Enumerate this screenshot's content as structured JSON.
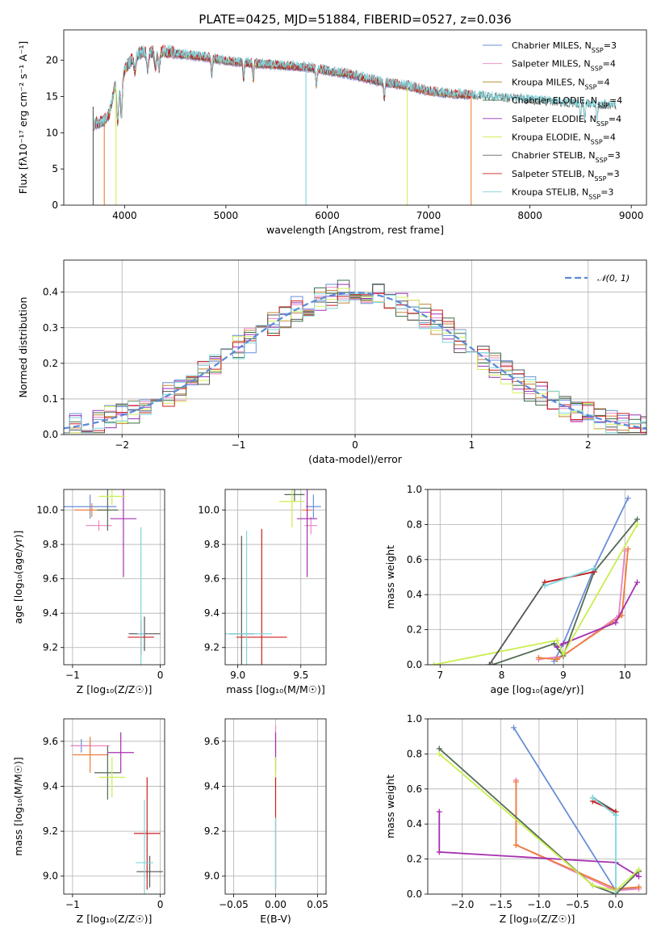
{
  "figure": {
    "title": "PLATE=0425, MJD=51884, FIBERID=0527, z=0.036"
  },
  "colors": {
    "Chabrier MILES": "#6a8fd8",
    "Salpeter MILES": "#e986c1",
    "Kroupa MILES": "#b88a1e",
    "Chabrier ELODIE": "#3b6e45",
    "Salpeter ELODIE": "#9b30b5",
    "Kroupa ELODIE": "#d4ef5c",
    "Chabrier STELIB": "#666666",
    "Salpeter STELIB": "#cc1f1f",
    "Kroupa STELIB": "#7fd6dd",
    "fit1": "#6a8fd8",
    "fit2": "#ef7d3a",
    "fit3": "#556b55",
    "fit4": "#a52fb0",
    "fit5": "#c9ee4e",
    "fit6": "#7fd6dd"
  },
  "chart_data": [
    {
      "id": "spectrum",
      "type": "line",
      "title": "PLATE=0425, MJD=51884, FIBERID=0527, z=0.036",
      "xlabel": "wavelength [Angstrom, rest frame]",
      "ylabel": "Flux [fλ10⁻¹⁷ erg cm⁻² s⁻¹ A⁻¹]",
      "xlim": [
        3400,
        9150
      ],
      "ylim": [
        0,
        24.2
      ],
      "xticks": [
        4000,
        5000,
        6000,
        7000,
        8000,
        9000
      ],
      "yticks": [
        0,
        5,
        10,
        15,
        20
      ],
      "grid": false,
      "legend_position": "upper-right",
      "series": [
        {
          "name": "Chabrier MILES, N",
          "sub": "SSP",
          "suffix": "=3",
          "color": "#6a8fd8",
          "xrange": [
            3700,
            7400
          ]
        },
        {
          "name": "Salpeter MILES, N",
          "sub": "SSP",
          "suffix": "=4",
          "color": "#e986c1",
          "xrange": [
            3700,
            7400
          ]
        },
        {
          "name": "Kroupa MILES, N",
          "sub": "SSP",
          "suffix": "=4",
          "color": "#b88a1e",
          "xrange": [
            3700,
            7400
          ]
        },
        {
          "name": "Chabrier ELODIE, N",
          "sub": "SSP",
          "suffix": "=4",
          "color": "#3b6e45",
          "xrange": [
            3700,
            6800
          ]
        },
        {
          "name": "Salpeter ELODIE, N",
          "sub": "SSP",
          "suffix": "=4",
          "color": "#9b30b5",
          "xrange": [
            3700,
            6800
          ]
        },
        {
          "name": "Kroupa ELODIE, N",
          "sub": "SSP",
          "suffix": "=4",
          "color": "#d4ef5c",
          "xrange": [
            3700,
            6800
          ]
        },
        {
          "name": "Chabrier STELIB, N",
          "sub": "SSP",
          "suffix": "=3",
          "color": "#666666",
          "xrange": [
            3700,
            8850
          ]
        },
        {
          "name": "Salpeter STELIB, N",
          "sub": "SSP",
          "suffix": "=3",
          "color": "#cc1f1f",
          "xrange": [
            3700,
            7420
          ]
        },
        {
          "name": "Kroupa STELIB, N",
          "sub": "SSP",
          "suffix": "=3",
          "color": "#7fd6dd",
          "xrange": [
            3700,
            8850
          ]
        }
      ],
      "continuum": {
        "x": [
          3700,
          3800,
          3850,
          3900,
          4000,
          4100,
          4200,
          4400,
          4600,
          4800,
          5000,
          5200,
          5500,
          5800,
          6000,
          6200,
          6500,
          6800,
          7000,
          7200,
          7500,
          7800,
          8000,
          8300,
          8600,
          8850
        ],
        "y": [
          11.0,
          11.5,
          12.5,
          16.0,
          18.5,
          20.5,
          21.0,
          21.0,
          20.6,
          20.3,
          19.8,
          19.5,
          19.2,
          18.9,
          18.4,
          18.0,
          17.0,
          16.3,
          15.6,
          15.3,
          15.0,
          14.6,
          14.4,
          14.0,
          13.8,
          13.6
        ]
      },
      "absorption_lines": [
        3934,
        3969,
        4102,
        4227,
        4304,
        4341,
        4861,
        5175,
        5270,
        5893,
        6563,
        8498,
        8542,
        8662
      ],
      "dropouts": [
        {
          "x": 3690,
          "color": "#555555"
        },
        {
          "x": 3800,
          "color": "#ef7d3a"
        },
        {
          "x": 3915,
          "color": "#d4ef5c"
        },
        {
          "x": 5790,
          "color": "#7fd6dd"
        },
        {
          "x": 6790,
          "color": "#d4ef5c"
        },
        {
          "x": 7420,
          "color": "#ef7d3a"
        }
      ]
    },
    {
      "id": "residuals",
      "type": "line",
      "xlabel": "(data-model)/error",
      "ylabel": "Normed distribution",
      "xlim": [
        -2.5,
        2.5
      ],
      "ylim": [
        0,
        0.49
      ],
      "xticks": [
        -2,
        -1,
        0,
        1,
        2
      ],
      "yticks": [
        0.0,
        0.1,
        0.2,
        0.3,
        0.4
      ],
      "grid": true,
      "legend_position": "upper-right",
      "reference": {
        "name": "𝒩(0, 1)",
        "mean": 0,
        "sigma": 1,
        "color": "#5a8ad8"
      },
      "bin_width": 0.1,
      "histograms": [
        {
          "color": "#6a8fd8",
          "offset": 0.0
        },
        {
          "color": "#e986c1",
          "offset": 0.03
        },
        {
          "color": "#c0853a",
          "offset": 0.06
        },
        {
          "color": "#3b6e45",
          "offset": 0.09
        },
        {
          "color": "#9b30b5",
          "offset": 0.12
        },
        {
          "color": "#d4ef5c",
          "offset": 0.15
        },
        {
          "color": "#555555",
          "offset": 0.18
        },
        {
          "color": "#cc1f1f",
          "offset": 0.21
        },
        {
          "color": "#7fd6dd",
          "offset": 0.24
        }
      ]
    },
    {
      "id": "age_vs_Z",
      "type": "scatter",
      "xlabel": "Z [log₁₀(Z/Z☉)]",
      "ylabel": "age  [log₁₀(age/yr)]",
      "xlim": [
        -1.1,
        0.05
      ],
      "ylim": [
        9.1,
        10.12
      ],
      "xticks": [
        -1,
        0
      ],
      "yticks": [
        9.2,
        9.4,
        9.6,
        9.8,
        10.0
      ],
      "grid": true,
      "points": [
        {
          "x": -0.8,
          "y": 10.02,
          "xerr": 0.3,
          "yerr": 0.07,
          "color": "#6a8fd8"
        },
        {
          "x": -0.7,
          "y": 9.91,
          "xerr": 0.15,
          "yerr": 0.03,
          "color": "#e986c1"
        },
        {
          "x": -0.78,
          "y": 10.0,
          "xerr": 0.2,
          "yerr": 0.04,
          "color": "#ef7d3a"
        },
        {
          "x": -0.6,
          "y": 10.0,
          "xerr": 0.12,
          "yerr": 0.12,
          "color": "#556b55"
        },
        {
          "x": -0.42,
          "y": 9.95,
          "xerr": 0.15,
          "yerr": 0.34,
          "color": "#a52fb0"
        },
        {
          "x": -0.55,
          "y": 10.08,
          "xerr": 0.15,
          "yerr": 0.05,
          "color": "#c9ee4e"
        },
        {
          "x": -0.18,
          "y": 9.28,
          "xerr": 0.18,
          "yerr": 0.1,
          "color": "#555555"
        },
        {
          "x": -0.22,
          "y": 9.26,
          "xerr": 0.15,
          "yerr": 0.1,
          "color": "#cc1f1f"
        },
        {
          "x": -0.22,
          "y": 9.28,
          "xerr": 0.04,
          "yerr": 0.62,
          "color": "#7fd6dd"
        }
      ]
    },
    {
      "id": "age_vs_mass",
      "type": "scatter",
      "xlabel": "mass [log₁₀(M/M☉)]",
      "ylabel": "",
      "xlim": [
        8.9,
        9.7
      ],
      "ylim": [
        9.1,
        10.12
      ],
      "xticks": [
        9.0,
        9.5
      ],
      "yticks": [
        9.2,
        9.4,
        9.6,
        9.8,
        10.0
      ],
      "grid": true,
      "points": [
        {
          "x": 9.6,
          "y": 10.02,
          "xerr": 0.06,
          "yerr": 0.07,
          "color": "#6a8fd8"
        },
        {
          "x": 9.58,
          "y": 9.91,
          "xerr": 0.05,
          "yerr": 0.05,
          "color": "#e986c1"
        },
        {
          "x": 9.55,
          "y": 10.0,
          "xerr": 0.04,
          "yerr": 0.04,
          "color": "#ef7d3a"
        },
        {
          "x": 9.45,
          "y": 10.09,
          "xerr": 0.08,
          "yerr": 0.04,
          "color": "#556b55"
        },
        {
          "x": 9.55,
          "y": 9.95,
          "xerr": 0.08,
          "yerr": 0.34,
          "color": "#a52fb0"
        },
        {
          "x": 9.43,
          "y": 10.05,
          "xerr": 0.1,
          "yerr": 0.15,
          "color": "#c9ee4e"
        },
        {
          "x": 9.03,
          "y": 9.28,
          "xerr": 0.1,
          "yerr": 0.57,
          "color": "#555555"
        },
        {
          "x": 9.19,
          "y": 9.26,
          "xerr": 0.2,
          "yerr": 0.63,
          "color": "#cc1f1f"
        },
        {
          "x": 9.07,
          "y": 9.28,
          "xerr": 0.2,
          "yerr": 0.6,
          "color": "#7fd6dd"
        }
      ]
    },
    {
      "id": "weight_vs_age",
      "type": "line",
      "xlabel": "age  [log₁₀(age/yr)]",
      "ylabel": "mass weight",
      "xlim": [
        6.8,
        10.35
      ],
      "ylim": [
        0,
        1.0
      ],
      "xticks": [
        7,
        8,
        9,
        10
      ],
      "yticks": [
        0.0,
        0.2,
        0.4,
        0.6,
        0.8,
        1.0
      ],
      "grid": true,
      "series": [
        {
          "color": "#6a8fd8",
          "x": [
            8.85,
            9.0,
            9.5,
            10.05
          ],
          "y": [
            0.02,
            0.12,
            0.55,
            0.95
          ]
        },
        {
          "color": "#e986c1",
          "x": [
            8.6,
            9.0,
            9.9,
            10.0
          ],
          "y": [
            0.03,
            0.05,
            0.28,
            0.65
          ]
        },
        {
          "color": "#ef7d3a",
          "x": [
            8.6,
            8.9,
            9.95,
            10.05
          ],
          "y": [
            0.04,
            0.03,
            0.28,
            0.66
          ]
        },
        {
          "color": "#556b55",
          "x": [
            7.85,
            8.85,
            9.0,
            9.5,
            10.2
          ],
          "y": [
            0.0,
            0.12,
            0.05,
            0.53,
            0.83
          ]
        },
        {
          "color": "#a52fb0",
          "x": [
            8.9,
            9.0,
            9.85,
            10.2
          ],
          "y": [
            0.1,
            0.12,
            0.24,
            0.47
          ]
        },
        {
          "color": "#c9ee4e",
          "x": [
            6.9,
            8.9,
            9.0,
            10.2
          ],
          "y": [
            0.0,
            0.14,
            0.06,
            0.8
          ]
        },
        {
          "color": "#555555",
          "x": [
            7.8,
            8.7,
            9.5
          ],
          "y": [
            0.0,
            0.47,
            0.53
          ]
        },
        {
          "color": "#cc1f1f",
          "x": [
            8.7,
            9.5
          ],
          "y": [
            0.47,
            0.53
          ]
        },
        {
          "color": "#7fd6dd",
          "x": [
            8.7,
            9.5
          ],
          "y": [
            0.45,
            0.55
          ]
        }
      ]
    },
    {
      "id": "mass_vs_Z",
      "type": "scatter",
      "xlabel": "Z [log₁₀(Z/Z☉)]",
      "ylabel": "mass [log₁₀(M/M☉)]",
      "xlim": [
        -1.1,
        0.05
      ],
      "ylim": [
        8.92,
        9.7
      ],
      "xticks": [
        -1,
        0
      ],
      "yticks": [
        9.0,
        9.2,
        9.4,
        9.6
      ],
      "grid": true,
      "points": [
        {
          "x": -0.9,
          "y": 9.58,
          "xerr": 0.12,
          "yerr": 0.03,
          "color": "#6a8fd8"
        },
        {
          "x": -0.8,
          "y": 9.58,
          "xerr": 0.22,
          "yerr": 0.03,
          "color": "#e986c1"
        },
        {
          "x": -0.8,
          "y": 9.54,
          "xerr": 0.2,
          "yerr": 0.08,
          "color": "#ef7d3a"
        },
        {
          "x": -0.6,
          "y": 9.46,
          "xerr": 0.15,
          "yerr": 0.12,
          "color": "#556b55"
        },
        {
          "x": -0.45,
          "y": 9.55,
          "xerr": 0.15,
          "yerr": 0.09,
          "color": "#a52fb0"
        },
        {
          "x": -0.55,
          "y": 9.44,
          "xerr": 0.15,
          "yerr": 0.09,
          "color": "#c9ee4e"
        },
        {
          "x": -0.12,
          "y": 9.02,
          "xerr": 0.15,
          "yerr": 0.07,
          "color": "#555555"
        },
        {
          "x": -0.15,
          "y": 9.19,
          "xerr": 0.15,
          "yerr": 0.25,
          "color": "#cc1f1f"
        },
        {
          "x": -0.18,
          "y": 9.06,
          "xerr": 0.1,
          "yerr": 0.28,
          "color": "#7fd6dd"
        }
      ]
    },
    {
      "id": "mass_vs_ebv",
      "type": "scatter",
      "xlabel": "E(B-V)",
      "ylabel": "",
      "xlim": [
        -0.06,
        0.06
      ],
      "ylim": [
        8.92,
        9.7
      ],
      "xticks": [
        -0.05,
        0.0,
        0.05
      ],
      "yticks": [
        9.0,
        9.2,
        9.4,
        9.6
      ],
      "grid": true,
      "points": [
        {
          "x": 0.0,
          "y": 9.58,
          "xerr": 0,
          "yerr": 0.09,
          "color": "#e986c1"
        },
        {
          "x": 0.0,
          "y": 9.55,
          "xerr": 0,
          "yerr": 0.09,
          "color": "#a52fb0"
        },
        {
          "x": 0.0,
          "y": 9.44,
          "xerr": 0,
          "yerr": 0.09,
          "color": "#c9ee4e"
        },
        {
          "x": 0.0,
          "y": 9.19,
          "xerr": 0,
          "yerr": 0.25,
          "color": "#cc1f1f"
        },
        {
          "x": 0.0,
          "y": 9.1,
          "xerr": 0,
          "yerr": 0.16,
          "color": "#7fd6dd"
        }
      ]
    },
    {
      "id": "weight_vs_Z",
      "type": "line",
      "xlabel": "Z [log₁₀(Z/Z☉)]",
      "ylabel": "mass weight",
      "xlim": [
        -2.45,
        0.4
      ],
      "ylim": [
        0,
        1.0
      ],
      "xticks": [
        -2.0,
        -1.5,
        -1.0,
        -0.5,
        0.0
      ],
      "yticks": [
        0.0,
        0.2,
        0.4,
        0.6,
        0.8,
        1.0
      ],
      "grid": true,
      "series": [
        {
          "color": "#6a8fd8",
          "x": [
            -1.33,
            0.0,
            0.3
          ],
          "y": [
            0.95,
            0.02,
            0.04
          ]
        },
        {
          "color": "#e986c1",
          "x": [
            -1.3,
            -1.3,
            0.0,
            0.3
          ],
          "y": [
            0.65,
            0.28,
            0.02,
            0.03
          ]
        },
        {
          "color": "#ef7d3a",
          "x": [
            -1.3,
            -1.3,
            0.0,
            0.3
          ],
          "y": [
            0.64,
            0.28,
            0.03,
            0.04
          ]
        },
        {
          "color": "#556b55",
          "x": [
            -2.3,
            -0.3,
            0.0,
            0.3
          ],
          "y": [
            0.83,
            0.05,
            0.0,
            0.13
          ]
        },
        {
          "color": "#a52fb0",
          "x": [
            -2.3,
            -2.3,
            0.0,
            0.3
          ],
          "y": [
            0.47,
            0.24,
            0.18,
            0.1
          ]
        },
        {
          "color": "#c9ee4e",
          "x": [
            -2.3,
            -0.3,
            0.0,
            0.3
          ],
          "y": [
            0.8,
            0.05,
            0.02,
            0.14
          ]
        },
        {
          "color": "#555555",
          "x": [
            -0.3,
            0.0,
            0.0
          ],
          "y": [
            0.55,
            0.47,
            0.45
          ]
        },
        {
          "color": "#cc1f1f",
          "x": [
            -0.3,
            0.0
          ],
          "y": [
            0.53,
            0.47
          ]
        },
        {
          "color": "#7fd6dd",
          "x": [
            -0.3,
            0.0,
            0.0
          ],
          "y": [
            0.55,
            0.45,
            0.0
          ]
        }
      ]
    }
  ]
}
